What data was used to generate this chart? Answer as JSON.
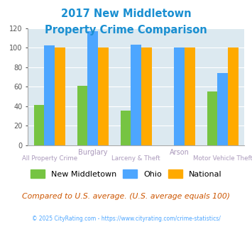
{
  "title_line1": "2017 New Middletown",
  "title_line2": "Property Crime Comparison",
  "title_color": "#1a8fd1",
  "new_middletown": [
    41,
    61,
    35,
    0,
    55
  ],
  "ohio": [
    102,
    117,
    103,
    100,
    74
  ],
  "national": [
    100,
    100,
    100,
    100,
    100
  ],
  "color_nm": "#76c442",
  "color_ohio": "#4da6ff",
  "color_national": "#ffaa00",
  "ylim": [
    0,
    120
  ],
  "yticks": [
    0,
    20,
    40,
    60,
    80,
    100,
    120
  ],
  "bg_color": "#dce9f0",
  "legend_labels": [
    "New Middletown",
    "Ohio",
    "National"
  ],
  "label_color": "#aa99bb",
  "footnote1": "Compared to U.S. average. (U.S. average equals 100)",
  "footnote2": "© 2025 CityRating.com - https://www.cityrating.com/crime-statistics/",
  "footnote1_color": "#cc5500",
  "footnote2_color": "#4da6ff"
}
